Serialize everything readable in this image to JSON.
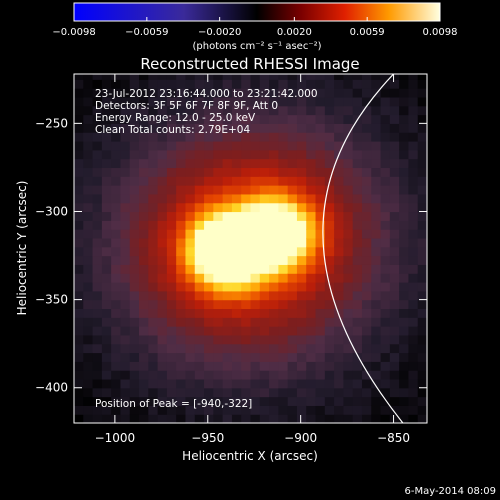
{
  "chart_data": {
    "type": "heatmap",
    "title": "Reconstructed RHESSI Image",
    "xlabel": "Heliocentric X (arcsec)",
    "ylabel": "Heliocentric Y (arcsec)",
    "xlim": [
      -1022,
      -832
    ],
    "ylim": [
      -420,
      -222
    ],
    "x_ticks": [
      -1000,
      -950,
      -900,
      -850
    ],
    "x_tick_labels": [
      "−1000",
      "−950",
      "−900",
      "−850"
    ],
    "y_ticks": [
      -400,
      -350,
      -300,
      -250
    ],
    "y_tick_labels": [
      "−400",
      "−350",
      "−300",
      "−250"
    ],
    "colorbar": {
      "range": [
        -0.0098,
        0.0098
      ],
      "ticks": [
        -0.0098,
        -0.0059,
        -0.002,
        0.002,
        0.0059,
        0.0098
      ],
      "tick_labels": [
        "−0.0098",
        "−0.0059",
        "−0.0020",
        "0.0020",
        "0.0059",
        "0.0098"
      ],
      "unit_label": "(photons cm⁻² s⁻¹ asec⁻²)"
    },
    "info_lines": [
      "23-Jul-2012 23:16:44.000 to 23:21:42.000",
      "Detectors: 3F 5F 6F 7F 8F 9F, Att 0",
      "Energy Range: 12.0 - 25.0 keV",
      "Clean    Total counts: 2.79E+04"
    ],
    "peak_label": "Position of Peak = [-940,-322]",
    "sources": [
      {
        "x": -940,
        "y": -322,
        "amplitude": 1.0
      },
      {
        "x": -912,
        "y": -312,
        "amplitude": 0.78
      }
    ],
    "limb_curve": [
      [
        -850,
        -222
      ],
      [
        -888,
        -315
      ],
      [
        -845,
        -420
      ]
    ],
    "grid": false
  },
  "footer": {
    "date": "6-May-2014 08:09"
  },
  "colors": {
    "background": "#000000",
    "limb": "#ffffff",
    "text": "#ffffff"
  }
}
